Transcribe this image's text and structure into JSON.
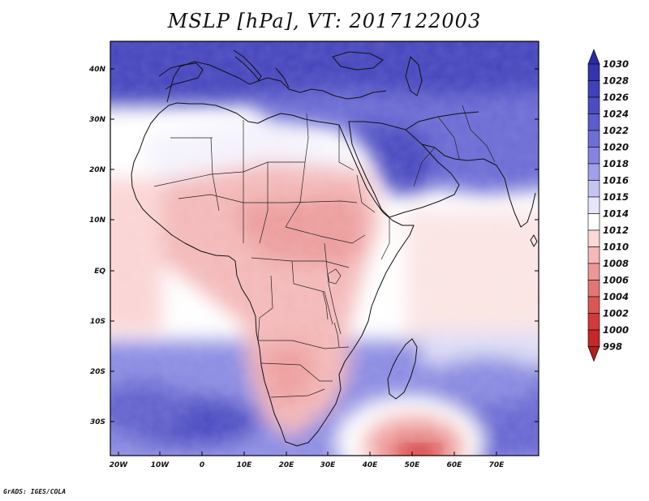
{
  "title": "MSLP [hPa], VT: 2017122003",
  "footer": "GrADS: IGES/COLA",
  "map": {
    "variable": "Mean sea level pressure",
    "units": "hPa",
    "region": "Africa, Middle East and western Indian Ocean",
    "lat_labels": [
      "40N",
      "30N",
      "20N",
      "10N",
      "EQ",
      "10S",
      "20S",
      "30S"
    ],
    "lon_labels": [
      "20W",
      "10W",
      "0",
      "10E",
      "20E",
      "30E",
      "40E",
      "50E",
      "60E",
      "70E"
    ]
  },
  "colorbar": {
    "levels": [
      "1030",
      "1028",
      "1026",
      "1024",
      "1022",
      "1020",
      "1018",
      "1016",
      "1015",
      "1014",
      "1012",
      "1010",
      "1008",
      "1006",
      "1004",
      "1002",
      "1000",
      "998"
    ],
    "colors": [
      "#2a2aa6",
      "#3434ae",
      "#4040b8",
      "#4c4cc2",
      "#5c5ccc",
      "#6e6ed6",
      "#8484e0",
      "#a0a0e8",
      "#c4c4f2",
      "#e6e6fa",
      "#ffffff",
      "#fad8d8",
      "#f4b8b8",
      "#ec9898",
      "#e47676",
      "#dc5656",
      "#d23a3a",
      "#c42828",
      "#b01e1e"
    ]
  }
}
